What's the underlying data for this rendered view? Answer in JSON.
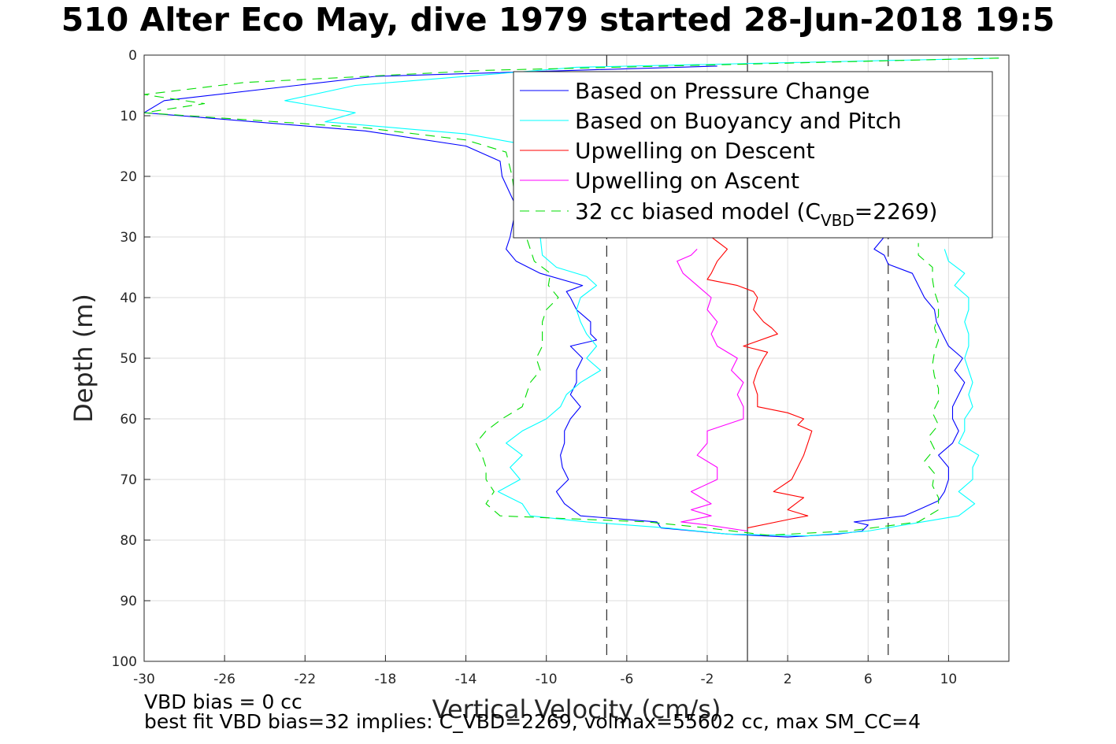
{
  "title": "510 Alter Eco May, dive 1979 started 28-Jun-2018 19:5",
  "notes": {
    "line1": "VBD bias = 0 cc",
    "line2": "best fit VBD bias=32 implies: C_VBD=2269, volmax=55602 cc, max SM_CC=4"
  },
  "chart_data": {
    "type": "line",
    "title": "510 Alter Eco May, dive 1979 started 28-Jun-2018 19:5",
    "xlabel": "Vertical Velocity (cm/s)",
    "ylabel": "Depth (m)",
    "xlim": [
      -30,
      13
    ],
    "ylim": [
      100,
      0
    ],
    "y_reversed": true,
    "grid": true,
    "legend_position": "top-right",
    "xticks": [
      -30,
      -26,
      -22,
      -18,
      -14,
      -10,
      -6,
      -2,
      2,
      6,
      10
    ],
    "yticks": [
      0,
      10,
      20,
      30,
      40,
      50,
      60,
      70,
      80,
      90,
      100
    ],
    "reference_lines": [
      {
        "x": 0,
        "style": "solid",
        "color": "#000000"
      },
      {
        "x": -7,
        "style": "dashed",
        "color": "#000000"
      },
      {
        "x": 7,
        "style": "dashed",
        "color": "#000000"
      }
    ],
    "legend": [
      {
        "label": "Based on Pressure Change",
        "color": "#0000ff",
        "dashed": false
      },
      {
        "label": "Based on Buoyancy and Pitch",
        "color": "#00ffff",
        "dashed": false
      },
      {
        "label": "Upwelling on Descent",
        "color": "#ff0000",
        "dashed": false
      },
      {
        "label": "Upwelling on Ascent",
        "color": "#ff00ff",
        "dashed": false
      },
      {
        "label": "32 cc biased model (C",
        "sub": "VBD",
        "suffix": "=2269)",
        "color": "#00dd00",
        "dashed": true
      }
    ],
    "series": [
      {
        "name": "Based on Pressure Change",
        "color": "#0000ff",
        "dashed": false,
        "points": [
          [
            -1.5,
            1.8
          ],
          [
            -18.5,
            3.5
          ],
          [
            -29,
            7.5
          ],
          [
            -30,
            9.5
          ],
          [
            -19,
            12.5
          ],
          [
            -14,
            15
          ],
          [
            -12.3,
            17.5
          ],
          [
            -12.2,
            20
          ],
          [
            -11.5,
            25
          ],
          [
            -11.8,
            30
          ],
          [
            -12,
            32
          ],
          [
            -11.5,
            34
          ],
          [
            -10.3,
            36
          ],
          [
            -8.2,
            38
          ],
          [
            -9,
            39
          ],
          [
            -8.8,
            40
          ],
          [
            -8.5,
            42
          ],
          [
            -7.8,
            44
          ],
          [
            -7.8,
            46
          ],
          [
            -7.5,
            47
          ],
          [
            -8.8,
            48
          ],
          [
            -8.2,
            50
          ],
          [
            -8.5,
            52
          ],
          [
            -8.5,
            54
          ],
          [
            -8.8,
            56
          ],
          [
            -8.3,
            58
          ],
          [
            -8.8,
            60
          ],
          [
            -9.1,
            62
          ],
          [
            -9.1,
            64
          ],
          [
            -9.3,
            66
          ],
          [
            -9.2,
            68
          ],
          [
            -8.9,
            70
          ],
          [
            -9.5,
            72
          ],
          [
            -9.1,
            74
          ],
          [
            -8.3,
            76
          ],
          [
            -4.5,
            77
          ],
          [
            -4.3,
            78
          ],
          [
            -1,
            79
          ],
          [
            2,
            79.5
          ],
          [
            4.5,
            79
          ],
          [
            5.7,
            78.5
          ],
          [
            6,
            77.5
          ],
          [
            5.3,
            77
          ],
          [
            7.8,
            76
          ],
          [
            8.5,
            75
          ],
          [
            9.5,
            73.5
          ],
          [
            9.8,
            72
          ],
          [
            10,
            70
          ],
          [
            10,
            68
          ],
          [
            9.5,
            66
          ],
          [
            10.2,
            64
          ],
          [
            10.5,
            62
          ],
          [
            10.2,
            60
          ],
          [
            10.2,
            58
          ],
          [
            10.5,
            56
          ],
          [
            10.8,
            54
          ],
          [
            10.3,
            52
          ],
          [
            10.7,
            50
          ],
          [
            10,
            48
          ],
          [
            9.7,
            46
          ],
          [
            9.4,
            44
          ],
          [
            9.3,
            42
          ],
          [
            8.8,
            40
          ],
          [
            8.5,
            38
          ],
          [
            8.2,
            36
          ],
          [
            7,
            34.5
          ],
          [
            6.8,
            33
          ],
          [
            6.3,
            32
          ],
          [
            6.8,
            30
          ]
        ]
      },
      {
        "name": "Based on Buoyancy and Pitch",
        "color": "#00ffff",
        "dashed": false,
        "points": [
          [
            12.5,
            0.5
          ],
          [
            -8.5,
            2
          ],
          [
            -19.5,
            5
          ],
          [
            -23,
            7.5
          ],
          [
            -19.5,
            9.5
          ],
          [
            -21,
            11
          ],
          [
            -14,
            13
          ],
          [
            -11.5,
            14.5
          ],
          [
            -11.5,
            20
          ],
          [
            -10.5,
            25
          ],
          [
            -10.3,
            30
          ],
          [
            -10.2,
            33
          ],
          [
            -9.5,
            35
          ],
          [
            -8,
            36.5
          ],
          [
            -7.5,
            38
          ],
          [
            -8.3,
            40
          ],
          [
            -8.5,
            42
          ],
          [
            -8.3,
            44
          ],
          [
            -8,
            46
          ],
          [
            -7.5,
            48
          ],
          [
            -8,
            50
          ],
          [
            -7.3,
            52
          ],
          [
            -8.3,
            54
          ],
          [
            -9,
            56
          ],
          [
            -9.3,
            58
          ],
          [
            -10,
            60
          ],
          [
            -11.2,
            62
          ],
          [
            -12,
            64
          ],
          [
            -11.2,
            66
          ],
          [
            -11.8,
            68
          ],
          [
            -11.3,
            70
          ],
          [
            -12.4,
            72
          ],
          [
            -11.2,
            74
          ],
          [
            -10.8,
            76
          ],
          [
            -8,
            77
          ],
          [
            -4,
            78
          ],
          [
            -1,
            79
          ],
          [
            3,
            79.3
          ],
          [
            6,
            78.5
          ],
          [
            8.7,
            77
          ],
          [
            10.5,
            76
          ],
          [
            11.3,
            74
          ],
          [
            10.5,
            72
          ],
          [
            11.2,
            70
          ],
          [
            11.2,
            68
          ],
          [
            11.5,
            66
          ],
          [
            10.5,
            64
          ],
          [
            10.8,
            62
          ],
          [
            10.8,
            60
          ],
          [
            11.2,
            58
          ],
          [
            11,
            56
          ],
          [
            11.2,
            54
          ],
          [
            11,
            52
          ],
          [
            10.8,
            50
          ],
          [
            11,
            48
          ],
          [
            11,
            46
          ],
          [
            10.8,
            44
          ],
          [
            11,
            42
          ],
          [
            11,
            40
          ],
          [
            10.3,
            38
          ],
          [
            10.8,
            36
          ],
          [
            10,
            34
          ],
          [
            9.8,
            32
          ]
        ]
      },
      {
        "name": "Upwelling on Descent",
        "color": "#ff0000",
        "dashed": false,
        "points": [
          [
            -1.8,
            30
          ],
          [
            -1,
            32
          ],
          [
            -1.5,
            34
          ],
          [
            -1.8,
            36
          ],
          [
            -2,
            37
          ],
          [
            -0.5,
            38
          ],
          [
            0.3,
            39
          ],
          [
            0.5,
            40
          ],
          [
            0.3,
            42
          ],
          [
            0.8,
            44
          ],
          [
            1.2,
            45
          ],
          [
            1.5,
            46
          ],
          [
            -0.2,
            48
          ],
          [
            1,
            49
          ],
          [
            0.8,
            50
          ],
          [
            0.5,
            52
          ],
          [
            0.3,
            54
          ],
          [
            0.5,
            56
          ],
          [
            0.5,
            58
          ],
          [
            2,
            59
          ],
          [
            2.8,
            60
          ],
          [
            2.5,
            61
          ],
          [
            3.2,
            62
          ],
          [
            3,
            64
          ],
          [
            2.8,
            66
          ],
          [
            2.5,
            68
          ],
          [
            2.2,
            70
          ],
          [
            1.3,
            72
          ],
          [
            2.8,
            73
          ],
          [
            2,
            75
          ],
          [
            3,
            76
          ],
          [
            2.2,
            76.5
          ],
          [
            0,
            78
          ]
        ]
      },
      {
        "name": "Upwelling on Ascent",
        "color": "#ff00ff",
        "dashed": false,
        "points": [
          [
            -2.5,
            32
          ],
          [
            -2.8,
            33
          ],
          [
            -3.5,
            34
          ],
          [
            -3.2,
            36
          ],
          [
            -2.5,
            38
          ],
          [
            -1.8,
            40
          ],
          [
            -2,
            42
          ],
          [
            -1.5,
            44
          ],
          [
            -1.8,
            46
          ],
          [
            -1.5,
            48
          ],
          [
            -0.5,
            50
          ],
          [
            -0.8,
            52
          ],
          [
            -0.2,
            54
          ],
          [
            -0.5,
            56
          ],
          [
            -0.2,
            58
          ],
          [
            -0.2,
            60
          ],
          [
            -2,
            62
          ],
          [
            -2,
            64
          ],
          [
            -2.5,
            66
          ],
          [
            -1.5,
            68
          ],
          [
            -1.5,
            70
          ],
          [
            -2.8,
            72
          ],
          [
            -1.8,
            74
          ],
          [
            -2.8,
            75
          ],
          [
            -1.8,
            76
          ],
          [
            -3.3,
            77
          ],
          [
            -2,
            77.5
          ],
          [
            0,
            78.5
          ]
        ]
      },
      {
        "name": "32 cc biased model (CVBD=2269)",
        "color": "#00dd00",
        "dashed": true,
        "points": [
          [
            12.5,
            0.5
          ],
          [
            -13,
            2.5
          ],
          [
            -25,
            4.5
          ],
          [
            -30,
            6.5
          ],
          [
            -27,
            8
          ],
          [
            -30,
            9.5
          ],
          [
            -19,
            12
          ],
          [
            -14,
            14
          ],
          [
            -12,
            16
          ],
          [
            -11.7,
            20
          ],
          [
            -11.5,
            25
          ],
          [
            -11,
            30
          ],
          [
            -10.6,
            34
          ],
          [
            -9.8,
            36
          ],
          [
            -9.9,
            38
          ],
          [
            -9.4,
            40
          ],
          [
            -10,
            42
          ],
          [
            -10.2,
            44
          ],
          [
            -10.2,
            46
          ],
          [
            -10.2,
            48
          ],
          [
            -10.5,
            50
          ],
          [
            -10.3,
            52
          ],
          [
            -10.8,
            54
          ],
          [
            -11,
            56
          ],
          [
            -11.2,
            58
          ],
          [
            -12.2,
            60
          ],
          [
            -13,
            62
          ],
          [
            -13.5,
            64
          ],
          [
            -13.2,
            66
          ],
          [
            -13,
            68
          ],
          [
            -13,
            70
          ],
          [
            -12.6,
            72
          ],
          [
            -13,
            74
          ],
          [
            -12.3,
            76
          ],
          [
            -5,
            77
          ],
          [
            -2,
            78
          ],
          [
            1,
            79.2
          ],
          [
            5,
            78.5
          ],
          [
            8.5,
            77
          ],
          [
            9.5,
            75
          ],
          [
            9.5,
            73
          ],
          [
            9.2,
            71
          ],
          [
            9.3,
            69
          ],
          [
            8.8,
            67
          ],
          [
            9.3,
            65
          ],
          [
            9,
            63
          ],
          [
            9.5,
            61
          ],
          [
            9.2,
            59
          ],
          [
            9.5,
            57
          ],
          [
            9.5,
            55
          ],
          [
            9.3,
            53
          ],
          [
            9.2,
            51
          ],
          [
            9.3,
            49
          ],
          [
            9.5,
            47
          ],
          [
            9.3,
            45
          ],
          [
            9.5,
            43
          ],
          [
            9.5,
            41
          ],
          [
            9.3,
            39
          ],
          [
            9.2,
            37
          ],
          [
            9.2,
            35
          ],
          [
            8.5,
            33
          ],
          [
            8.5,
            31
          ]
        ]
      }
    ]
  }
}
